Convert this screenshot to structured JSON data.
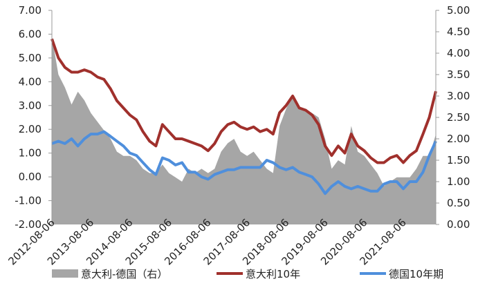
{
  "chart_data": {
    "type": "line",
    "x": [
      "2012-08-06",
      "2012-10-06",
      "2012-12-06",
      "2013-02-06",
      "2013-04-06",
      "2013-06-06",
      "2013-08-06",
      "2013-10-06",
      "2013-12-06",
      "2014-02-06",
      "2014-04-06",
      "2014-06-06",
      "2014-08-06",
      "2014-10-06",
      "2014-12-06",
      "2015-02-06",
      "2015-04-06",
      "2015-06-06",
      "2015-08-06",
      "2015-10-06",
      "2015-12-06",
      "2016-02-06",
      "2016-04-06",
      "2016-06-06",
      "2016-08-06",
      "2016-10-06",
      "2016-12-06",
      "2017-02-06",
      "2017-04-06",
      "2017-06-06",
      "2017-08-06",
      "2017-10-06",
      "2017-12-06",
      "2018-02-06",
      "2018-04-06",
      "2018-06-06",
      "2018-08-06",
      "2018-10-06",
      "2018-12-06",
      "2019-02-06",
      "2019-04-06",
      "2019-06-06",
      "2019-08-06",
      "2019-10-06",
      "2019-12-06",
      "2020-02-06",
      "2020-04-06",
      "2020-06-06",
      "2020-08-06",
      "2020-10-06",
      "2020-12-06",
      "2021-02-06",
      "2021-04-06",
      "2021-06-06",
      "2021-08-06",
      "2021-10-06",
      "2021-12-06",
      "2022-02-06",
      "2022-04-06",
      "2022-06-06"
    ],
    "xlim": [
      "2012-08-06",
      "2022-06-06"
    ],
    "xticks": [
      "2012-08-06",
      "2013-08-06",
      "2014-08-06",
      "2015-08-06",
      "2016-08-06",
      "2017-08-06",
      "2018-08-06",
      "2019-08-06",
      "2020-08-06",
      "2021-08-06"
    ],
    "ylim": [
      -2,
      7
    ],
    "yticks": [
      {
        "value": -2,
        "label": "-2.00"
      },
      {
        "value": -1,
        "label": "-1.00"
      },
      {
        "value": 0,
        "label": "0.00"
      },
      {
        "value": 1,
        "label": "1.00"
      },
      {
        "value": 2,
        "label": "2.00"
      },
      {
        "value": 3,
        "label": "3.00"
      },
      {
        "value": 4,
        "label": "4.00"
      },
      {
        "value": 5,
        "label": "5.00"
      },
      {
        "value": 6,
        "label": "6.00"
      },
      {
        "value": 7,
        "label": "7.00"
      }
    ],
    "negative_tick_color": "#ff0000",
    "y2lim": [
      0,
      5
    ],
    "y2ticks": [
      {
        "value": 0,
        "label": "0.00"
      },
      {
        "value": 0.5,
        "label": "0.50"
      },
      {
        "value": 1,
        "label": "1.00"
      },
      {
        "value": 1.5,
        "label": "1.50"
      },
      {
        "value": 2,
        "label": "2.00"
      },
      {
        "value": 2.5,
        "label": "2.50"
      },
      {
        "value": 3,
        "label": "3.00"
      },
      {
        "value": 3.5,
        "label": "3.50"
      },
      {
        "value": 4,
        "label": "4.00"
      },
      {
        "value": 4.5,
        "label": "4.50"
      },
      {
        "value": 5,
        "label": "5.00"
      }
    ],
    "series": [
      {
        "name": "意大利-德国（右）",
        "color": "#a6a6a6",
        "kind": "area",
        "axis": "y2",
        "values": [
          4.4,
          3.5,
          3.2,
          2.8,
          3.1,
          2.9,
          2.6,
          2.4,
          2.2,
          2.0,
          1.7,
          1.6,
          1.6,
          1.5,
          1.3,
          1.2,
          1.2,
          1.4,
          1.2,
          1.1,
          1.0,
          1.3,
          1.2,
          1.3,
          1.2,
          1.3,
          1.7,
          1.9,
          2.0,
          1.7,
          1.6,
          1.7,
          1.5,
          1.3,
          1.2,
          2.3,
          2.7,
          3.0,
          2.7,
          2.7,
          2.6,
          2.5,
          2.0,
          1.3,
          1.5,
          1.4,
          2.3,
          1.7,
          1.6,
          1.4,
          1.2,
          0.9,
          1.0,
          1.1,
          1.1,
          1.1,
          1.3,
          1.6,
          1.6,
          2.1
        ]
      },
      {
        "name": "意大利10年",
        "color": "#a0302c",
        "kind": "line",
        "values": [
          5.8,
          5.0,
          4.6,
          4.4,
          4.4,
          4.5,
          4.4,
          4.2,
          4.1,
          3.7,
          3.2,
          2.9,
          2.6,
          2.4,
          1.9,
          1.5,
          1.3,
          2.2,
          1.9,
          1.6,
          1.6,
          1.5,
          1.4,
          1.3,
          1.1,
          1.4,
          1.9,
          2.2,
          2.3,
          2.1,
          2.0,
          2.1,
          1.9,
          2.0,
          1.8,
          2.7,
          3.0,
          3.4,
          2.9,
          2.8,
          2.6,
          2.2,
          1.3,
          0.9,
          1.3,
          1.0,
          1.8,
          1.3,
          1.1,
          0.8,
          0.6,
          0.6,
          0.8,
          0.9,
          0.6,
          0.9,
          1.1,
          1.8,
          2.5,
          3.6
        ]
      },
      {
        "name": "德国10年期",
        "color": "#4f8fdc",
        "kind": "line",
        "values": [
          1.4,
          1.5,
          1.4,
          1.6,
          1.3,
          1.6,
          1.8,
          1.8,
          1.9,
          1.7,
          1.5,
          1.3,
          1.0,
          0.9,
          0.6,
          0.3,
          0.1,
          0.8,
          0.7,
          0.5,
          0.6,
          0.2,
          0.2,
          0.0,
          -0.1,
          0.1,
          0.2,
          0.3,
          0.3,
          0.4,
          0.4,
          0.4,
          0.4,
          0.7,
          0.6,
          0.4,
          0.3,
          0.4,
          0.2,
          0.1,
          0.0,
          -0.3,
          -0.7,
          -0.4,
          -0.2,
          -0.4,
          -0.5,
          -0.4,
          -0.5,
          -0.6,
          -0.6,
          -0.3,
          -0.2,
          -0.2,
          -0.5,
          -0.2,
          -0.2,
          0.2,
          0.9,
          1.5
        ]
      }
    ]
  }
}
